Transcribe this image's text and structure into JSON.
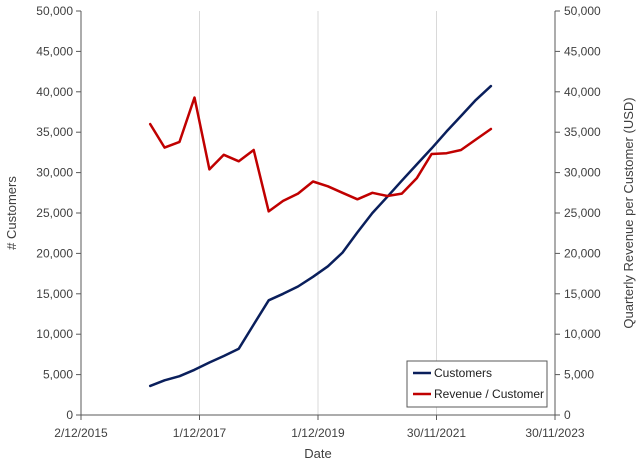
{
  "chart_data": {
    "type": "line",
    "title": "",
    "xlabel": "Date",
    "ylabel": "# Customers",
    "y2label": "Quarterly Revenue per Customer (USD)",
    "xlim": [
      "2015-12-02",
      "2023-11-30"
    ],
    "ylim": [
      0,
      50000
    ],
    "y2lim": [
      0,
      50000
    ],
    "x_tick_labels": [
      "2/12/2015",
      "1/12/2017",
      "1/12/2019",
      "30/11/2021",
      "30/11/2023"
    ],
    "y_tick_labels": [
      "0",
      "5,000",
      "10,000",
      "15,000",
      "20,000",
      "25,000",
      "30,000",
      "35,000",
      "40,000",
      "45,000",
      "50,000"
    ],
    "y2_tick_labels": [
      "0",
      "5,000",
      "10,000",
      "15,000",
      "20,000",
      "25,000",
      "30,000",
      "35,000",
      "40,000",
      "45,000",
      "50,000"
    ],
    "grid": "vertical",
    "legend_position": "bottom-right",
    "series": [
      {
        "name": "Customers",
        "axis": "left",
        "color": "#0a1f5c",
        "x": [
          "2017-01-31",
          "2017-04-30",
          "2017-07-31",
          "2017-10-31",
          "2018-01-31",
          "2018-04-30",
          "2018-07-31",
          "2018-10-31",
          "2019-01-31",
          "2019-04-30",
          "2019-07-31",
          "2019-10-31",
          "2020-01-31",
          "2020-04-30",
          "2020-07-31",
          "2020-10-31",
          "2021-01-31",
          "2021-04-30",
          "2021-07-31",
          "2021-10-31",
          "2022-01-31",
          "2022-04-30",
          "2022-07-31",
          "2022-10-31",
          "2023-01-31",
          "2023-04-30"
        ],
        "values": [
          3600,
          4300,
          4800,
          5600,
          6500,
          7300,
          8200,
          11200,
          14200,
          15000,
          15900,
          17100,
          18400,
          20100,
          22600,
          25000,
          27000,
          29000,
          31000,
          33000,
          35100,
          37000,
          39000,
          40700,
          null,
          null
        ]
      },
      {
        "name": "Revenue / Customer",
        "axis": "right",
        "color": "#c00000",
        "x": [
          "2017-01-31",
          "2017-04-30",
          "2017-07-31",
          "2017-10-31",
          "2018-01-31",
          "2018-04-30",
          "2018-07-31",
          "2018-10-31",
          "2019-01-31",
          "2019-04-30",
          "2019-07-31",
          "2019-10-31",
          "2020-01-31",
          "2020-04-30",
          "2020-07-31",
          "2020-10-31",
          "2021-01-31",
          "2021-04-30",
          "2021-07-31",
          "2021-10-31",
          "2022-01-31",
          "2022-04-30",
          "2022-07-31",
          "2022-10-31",
          "2023-01-31",
          "2023-04-30"
        ],
        "values": [
          36000,
          33100,
          33800,
          39300,
          30400,
          32200,
          31400,
          32800,
          25200,
          26500,
          27400,
          28900,
          28300,
          27500,
          26700,
          27500,
          27100,
          27400,
          29300,
          32300,
          32400,
          32800,
          34100,
          35400,
          null,
          null
        ]
      }
    ]
  }
}
